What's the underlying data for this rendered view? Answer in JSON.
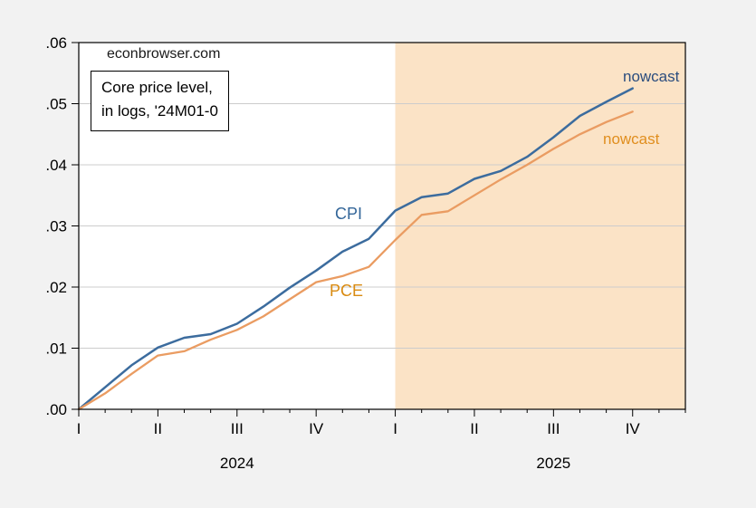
{
  "page": {
    "background": "#f2f2f2",
    "plot_background": "#ffffff",
    "frame_color": "#000000",
    "grid_color": "#cccccc"
  },
  "watermark": "econbrowser.com",
  "note_box": {
    "line1": "Core price level,",
    "line2": "in logs, '24M01-0"
  },
  "annotations": {
    "cpi_label": {
      "text": "CPI",
      "color": "#336699"
    },
    "pce_label": {
      "text": "PCE",
      "color": "#d98a10"
    },
    "nowcast_cpi": {
      "text": "nowcast",
      "color": "#2b4d7e"
    },
    "nowcast_pce": {
      "text": "nowcast",
      "color": "#e08e1e"
    }
  },
  "chart_data": {
    "type": "line",
    "title": "Core price level, in logs, '24M01-0",
    "source_watermark": "econbrowser.com",
    "x_unit": "month",
    "x": [
      "2024M01",
      "2024M02",
      "2024M03",
      "2024M04",
      "2024M05",
      "2024M06",
      "2024M07",
      "2024M08",
      "2024M09",
      "2024M10",
      "2024M11",
      "2024M12",
      "2025M01",
      "2025M02",
      "2025M03",
      "2025M04",
      "2025M05",
      "2025M06",
      "2025M07",
      "2025M08",
      "2025M09",
      "2025M10"
    ],
    "series": [
      {
        "name": "Core CPI (incl. nowcast)",
        "color": "#3c6c9e",
        "stroke_width": 2.5,
        "values": [
          0.0,
          0.0036,
          0.0072,
          0.0101,
          0.0117,
          0.0123,
          0.014,
          0.0168,
          0.0199,
          0.0227,
          0.0258,
          0.0279,
          0.0325,
          0.0347,
          0.0353,
          0.0377,
          0.039,
          0.0413,
          0.0445,
          0.048,
          0.0503,
          0.0525
        ]
      },
      {
        "name": "Core PCE (incl. nowcast)",
        "color": "#ea9c62",
        "stroke_width": 2.3,
        "values": [
          0.0,
          0.0026,
          0.0058,
          0.0088,
          0.0095,
          0.0114,
          0.013,
          0.0152,
          0.018,
          0.0208,
          0.0218,
          0.0233,
          0.0277,
          0.0318,
          0.0324,
          0.035,
          0.0376,
          0.04,
          0.0426,
          0.045,
          0.047,
          0.0487
        ]
      }
    ],
    "ylim": [
      0.0,
      0.06
    ],
    "y_tick_values": [
      0.0,
      0.01,
      0.02,
      0.03,
      0.04,
      0.05,
      0.06
    ],
    "y_tick_labels": [
      ".00",
      ".01",
      ".02",
      ".03",
      ".04",
      ".05",
      ".06"
    ],
    "grid": true,
    "axis_total_month_slots": 23,
    "x_axis": {
      "quarter_ticks": [
        {
          "label": "I",
          "month_index": 0
        },
        {
          "label": "II",
          "month_index": 3
        },
        {
          "label": "III",
          "month_index": 6
        },
        {
          "label": "IV",
          "month_index": 9
        },
        {
          "label": "I",
          "month_index": 12
        },
        {
          "label": "II",
          "month_index": 15
        },
        {
          "label": "III",
          "month_index": 18
        },
        {
          "label": "IV",
          "month_index": 21
        }
      ],
      "year_labels": [
        {
          "label": "2024",
          "month_index": 6
        },
        {
          "label": "2025",
          "month_index": 18
        }
      ]
    },
    "shaded_region": {
      "start_month_index": 12,
      "meaning": "nowcast period",
      "color": "#fbe3c6"
    },
    "legend": "inline annotations"
  }
}
